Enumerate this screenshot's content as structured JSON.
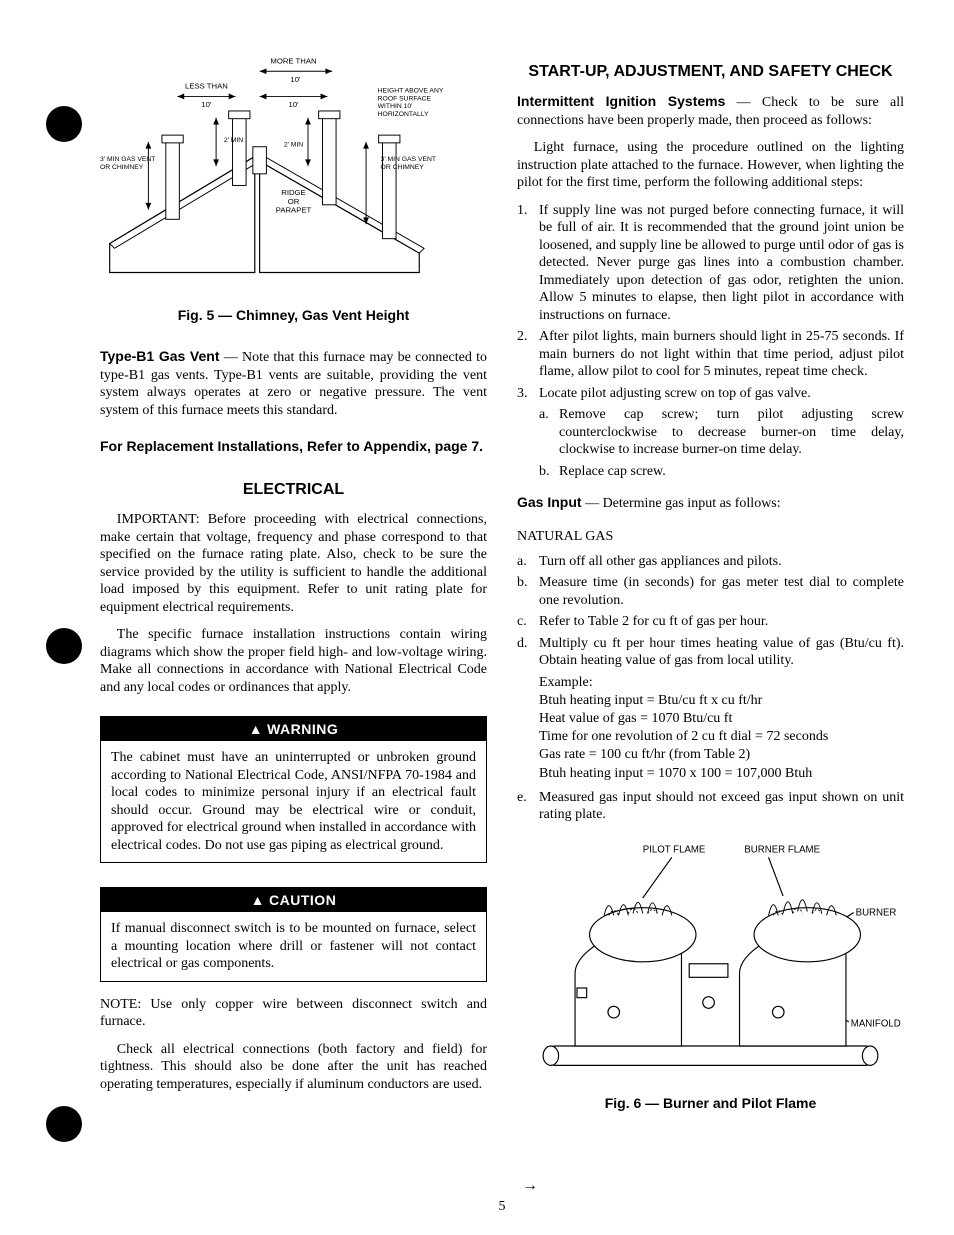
{
  "page_number": "5",
  "left_dots": {
    "color": "#000000"
  },
  "figure5": {
    "caption": "Fig. 5 — Chimney, Gas Vent Height",
    "labels": {
      "more_than": "MORE THAN",
      "ten_a": "10'",
      "less_than": "LESS THAN",
      "ten_b": "10'",
      "ten_c": "10'",
      "height_above": "HEIGHT ABOVE ANY ROOF SURFACE WITHIN 10' HORIZONTALLY",
      "two_min_a": "2' MIN",
      "two_min_b": "2' MIN",
      "three_min_left": "3' MIN GAS VENT OR CHIMNEY",
      "three_min_right": "3' MIN GAS VENT OR CHIMNEY",
      "ridge": "RIDGE OR PARAPET"
    }
  },
  "typeB1": {
    "heading": "Type-B1 Gas Vent",
    "text": " — Note that this furnace may be connected to type-B1 gas vents. Type-B1 vents are suitable, providing the vent system always operates at zero or negative pressure. The vent system of this furnace meets this standard."
  },
  "replacement_ref": "For Replacement Installations, Refer to Appendix, page 7.",
  "electrical": {
    "heading": "ELECTRICAL",
    "p1": "IMPORTANT: Before proceeding with electrical connections, make certain that voltage, frequency and phase correspond to that specified on the furnace rating plate. Also, check to be sure the service provided by the utility is sufficient to handle the additional load imposed by this equipment. Refer to unit rating plate for equipment electrical requirements.",
    "p2": "The specific furnace installation instructions contain wiring diagrams which show the proper field high- and low-voltage wiring. Make all connections in accordance with National Electrical Code and any local codes or ordinances that apply."
  },
  "warning": {
    "title": "WARNING",
    "body": "The cabinet must have an uninterrupted or unbroken ground according to National Electrical Code, ANSI/NFPA 70-1984 and local codes to minimize personal injury if an electrical fault should occur. Ground may be electrical wire or conduit, approved for electrical ground when installed in accordance with electrical codes. Do not use gas piping as electrical ground."
  },
  "caution": {
    "title": "CAUTION",
    "body": "If manual disconnect switch is to be mounted on furnace, select a mounting location where drill or fastener will not contact electrical or gas components."
  },
  "note_copper": "NOTE: Use only copper wire between disconnect switch and furnace.",
  "elec_tight": "Check all electrical connections (both factory and field) for tightness. This should also be done after the unit has reached operating temperatures, especially if aluminum conductors are used.",
  "startup": {
    "heading": "START-UP, ADJUSTMENT, AND SAFETY CHECK",
    "intermittent_heading": "Intermittent Ignition Systems",
    "intermittent_text": " — Check to be sure all connections have been properly made, then proceed as follows:",
    "light_furnace": "Light furnace, using the procedure outlined on the lighting instruction plate attached to the furnace. However, when lighting the pilot for the first time, perform the following additional steps:",
    "steps": [
      {
        "num": "1.",
        "text": "If supply line was not purged before connecting furnace, it will be full of air. It is recommended that the ground joint union be loosened, and supply line be allowed to purge until odor of gas is detected. Never purge gas lines into a combustion chamber. Immediately upon detection of gas odor, retighten the union. Allow 5 minutes to elapse, then light pilot in accordance with instructions on furnace."
      },
      {
        "num": "2.",
        "text": "After pilot lights, main burners should light in 25-75 seconds. If main burners do not light within that time period, adjust pilot flame, allow pilot to cool for 5 minutes, repeat time check."
      },
      {
        "num": "3.",
        "text": "Locate pilot adjusting screw on top of gas valve."
      }
    ],
    "substeps_3": [
      {
        "letter": "a.",
        "text": "Remove cap screw; turn pilot adjusting screw counterclockwise to decrease burner-on time delay, clockwise to increase burner-on time delay."
      },
      {
        "letter": "b.",
        "text": "Replace cap screw."
      }
    ]
  },
  "gas_input": {
    "heading": "Gas Input",
    "text": " — Determine gas input as follows:",
    "subheading": "NATURAL GAS",
    "items": [
      {
        "letter": "a.",
        "text": "Turn off all other gas appliances and pilots."
      },
      {
        "letter": "b.",
        "text": "Measure time (in seconds) for gas meter test dial to complete one revolution."
      },
      {
        "letter": "c.",
        "text": "Refer to Table 2 for cu ft of gas per hour."
      },
      {
        "letter": "d.",
        "text": "Multiply cu ft per hour times heating value of gas (Btu/cu ft). Obtain heating value of gas from local utility."
      }
    ],
    "example_label": "Example:",
    "example_lines": [
      "Btuh heating input = Btu/cu ft x cu ft/hr",
      "Heat value of gas = 1070 Btu/cu ft",
      "Time for one revolution of 2 cu ft dial = 72 seconds",
      "Gas rate = 100 cu ft/hr (from Table 2)",
      "Btuh heating input = 1070 x 100 = 107,000 Btuh"
    ],
    "item_e": {
      "letter": "e.",
      "text": "Measured gas input should not exceed gas input shown on unit rating plate."
    }
  },
  "figure6": {
    "caption": "Fig. 6 — Burner and Pilot Flame",
    "labels": {
      "pilot_flame": "PILOT FLAME",
      "burner_flame": "BURNER FLAME",
      "burner": "BURNER",
      "manifold": "MANIFOLD"
    }
  }
}
